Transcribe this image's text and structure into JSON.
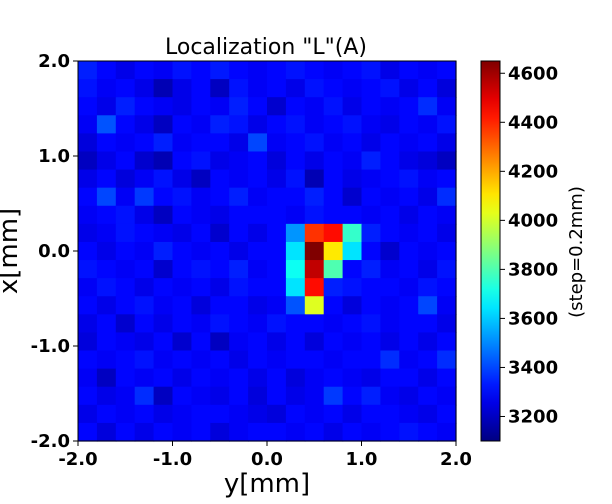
{
  "chart_data": {
    "type": "heatmap",
    "title": "Localization \"L\"(A)",
    "xlabel": "y[mm]",
    "ylabel": "x[mm]",
    "xlim": [
      -2.0,
      2.0
    ],
    "ylim": [
      -2.0,
      2.0
    ],
    "x_ticks": [
      "-2.0",
      "-1.0",
      "0.0",
      "1.0",
      "2.0"
    ],
    "y_ticks": [
      "-2.0",
      "-1.0",
      "0.0",
      "1.0",
      "2.0"
    ],
    "colorbar": {
      "label": "(step=0.2mm)",
      "range": [
        3100,
        4650
      ],
      "ticks": [
        "3200",
        "3400",
        "3600",
        "3800",
        "4000",
        "4200",
        "4400",
        "4600"
      ],
      "colormap": "jet"
    },
    "rows_top_to_bottom": [
      [
        3340,
        3300,
        3260,
        3300,
        3280,
        3320,
        3300,
        3330,
        3300,
        3280,
        3300,
        3320,
        3300,
        3280,
        3300,
        3320,
        3260,
        3300,
        3280,
        3300
      ],
      [
        3320,
        3280,
        3300,
        3260,
        3180,
        3260,
        3300,
        3200,
        3320,
        3280,
        3300,
        3260,
        3320,
        3300,
        3280,
        3300,
        3320,
        3260,
        3300,
        3240
      ],
      [
        3300,
        3260,
        3340,
        3300,
        3280,
        3260,
        3300,
        3280,
        3340,
        3300,
        3220,
        3300,
        3280,
        3320,
        3260,
        3300,
        3280,
        3300,
        3360,
        3280
      ],
      [
        3280,
        3420,
        3300,
        3260,
        3200,
        3300,
        3280,
        3340,
        3320,
        3260,
        3300,
        3320,
        3280,
        3300,
        3320,
        3280,
        3260,
        3300,
        3280,
        3320
      ],
      [
        3240,
        3300,
        3280,
        3300,
        3340,
        3280,
        3300,
        3300,
        3260,
        3400,
        3280,
        3300,
        3320,
        3280,
        3300,
        3260,
        3300,
        3280,
        3300,
        3260
      ],
      [
        3200,
        3260,
        3300,
        3220,
        3180,
        3300,
        3320,
        3260,
        3280,
        3300,
        3240,
        3300,
        3260,
        3300,
        3280,
        3340,
        3300,
        3260,
        3240,
        3200
      ],
      [
        3260,
        3300,
        3240,
        3280,
        3320,
        3260,
        3200,
        3300,
        3280,
        3300,
        3260,
        3320,
        3180,
        3300,
        3260,
        3280,
        3300,
        3320,
        3280,
        3300
      ],
      [
        3300,
        3400,
        3280,
        3380,
        3300,
        3320,
        3280,
        3300,
        3340,
        3280,
        3300,
        3300,
        3340,
        3300,
        3220,
        3300,
        3280,
        3300,
        3260,
        3360
      ],
      [
        3280,
        3300,
        3320,
        3260,
        3200,
        3300,
        3280,
        3260,
        3300,
        3300,
        3300,
        3280,
        3320,
        3300,
        3300,
        3280,
        3300,
        3260,
        3300,
        3280
      ],
      [
        3260,
        3280,
        3320,
        3300,
        3280,
        3260,
        3300,
        3220,
        3300,
        3260,
        3300,
        3520,
        4380,
        4440,
        3760,
        3340,
        3300,
        3280,
        3300,
        3260
      ],
      [
        3300,
        3260,
        3300,
        3280,
        3340,
        3300,
        3280,
        3300,
        3260,
        3300,
        3300,
        3640,
        4650,
        4100,
        3640,
        3300,
        3220,
        3300,
        3280,
        3300
      ],
      [
        3320,
        3300,
        3280,
        3300,
        3220,
        3300,
        3320,
        3300,
        3340,
        3280,
        3300,
        3700,
        4550,
        3800,
        3300,
        3340,
        3280,
        3300,
        3260,
        3320
      ],
      [
        3280,
        3320,
        3300,
        3260,
        3300,
        3280,
        3300,
        3260,
        3320,
        3300,
        3300,
        3640,
        4440,
        3340,
        3320,
        3300,
        3300,
        3280,
        3320,
        3300
      ],
      [
        3300,
        3260,
        3300,
        3320,
        3280,
        3300,
        3240,
        3300,
        3300,
        3260,
        3280,
        3420,
        4020,
        3300,
        3240,
        3300,
        3280,
        3300,
        3400,
        3280
      ],
      [
        3260,
        3300,
        3220,
        3300,
        3260,
        3300,
        3280,
        3320,
        3300,
        3280,
        3320,
        3300,
        3300,
        3280,
        3300,
        3320,
        3280,
        3300,
        3300,
        3260
      ],
      [
        3240,
        3300,
        3280,
        3260,
        3300,
        3220,
        3300,
        3200,
        3280,
        3300,
        3260,
        3300,
        3240,
        3300,
        3280,
        3300,
        3260,
        3300,
        3260,
        3300
      ],
      [
        3300,
        3280,
        3300,
        3320,
        3280,
        3300,
        3280,
        3300,
        3260,
        3300,
        3280,
        3300,
        3300,
        3280,
        3300,
        3300,
        3360,
        3280,
        3300,
        3360
      ],
      [
        3280,
        3200,
        3300,
        3280,
        3300,
        3260,
        3300,
        3280,
        3300,
        3260,
        3300,
        3240,
        3280,
        3300,
        3280,
        3260,
        3300,
        3300,
        3260,
        3300
      ],
      [
        3300,
        3260,
        3280,
        3360,
        3200,
        3300,
        3280,
        3260,
        3300,
        3240,
        3300,
        3260,
        3280,
        3380,
        3300,
        3340,
        3280,
        3260,
        3300,
        3280
      ],
      [
        3260,
        3300,
        3280,
        3300,
        3260,
        3280,
        3300,
        3300,
        3280,
        3260,
        3240,
        3300,
        3280,
        3300,
        3260,
        3300,
        3300,
        3280,
        3260,
        3300
      ],
      [
        3300,
        3240,
        3300,
        3260,
        3300,
        3280,
        3300,
        3240,
        3280,
        3300,
        3300,
        3280,
        3300,
        3260,
        3300,
        3280,
        3300,
        3320,
        3300,
        3280
      ]
    ]
  }
}
